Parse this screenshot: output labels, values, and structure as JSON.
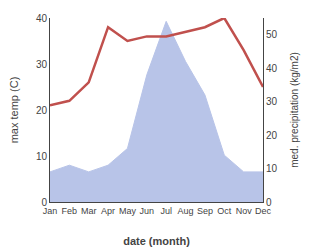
{
  "chart_data": {
    "type": "line",
    "categories": [
      "Jan",
      "Feb",
      "Mar",
      "Apr",
      "May",
      "Jun",
      "Jul",
      "Aug",
      "Sep",
      "Oct",
      "Nov",
      "Dec"
    ],
    "xlabel": "date (month)",
    "ylabel": "max temp (C)",
    "y2label": "med. precipitation (kg/m2)",
    "series": [
      {
        "type": "area",
        "axis": "y2",
        "color": "#b8c4e8",
        "values": [
          9,
          11,
          9,
          11,
          16,
          38,
          54,
          42,
          32,
          14,
          9,
          9
        ]
      },
      {
        "type": "line",
        "color": "#c0504d",
        "values": [
          21,
          22,
          26,
          38,
          35,
          36,
          36,
          37,
          38,
          40,
          33,
          25
        ]
      }
    ],
    "ylim": [
      0,
      40
    ],
    "yticks": [
      0,
      10,
      20,
      30,
      40
    ],
    "y2lim": [
      0,
      55
    ],
    "y2ticks": [
      0,
      10,
      20,
      30,
      40,
      50
    ],
    "grid": false
  }
}
